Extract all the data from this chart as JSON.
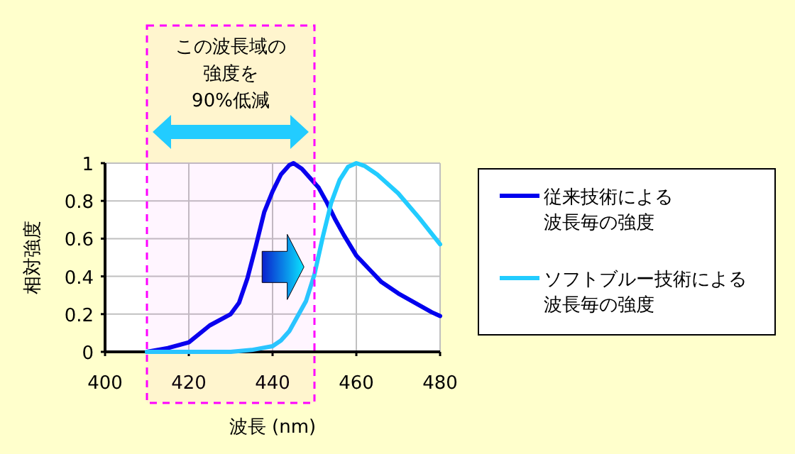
{
  "chart_data": {
    "type": "line",
    "xlabel": "波長 (nm)",
    "ylabel": "相対強度",
    "xlim": [
      400,
      480
    ],
    "xticks": [
      400,
      420,
      440,
      460,
      480
    ],
    "ylim": [
      0,
      1
    ],
    "yticks": [
      0,
      0.2,
      0.4,
      0.6,
      0.8,
      1
    ],
    "grid": true,
    "legend": "right",
    "line_style": "solid",
    "marker": "none",
    "bands": [
      {
        "axis": "x",
        "from": 410,
        "to": 450,
        "label": "この波長域の強度を90%低減",
        "color": "#ff00ff"
      }
    ],
    "series": [
      {
        "name": "従来技術による波長毎の強度",
        "color": "#0000ee",
        "x": [
          410,
          415,
          420,
          425,
          430,
          432,
          434,
          436,
          438,
          440,
          442,
          444,
          445,
          447,
          449,
          451,
          453,
          455,
          457,
          460,
          463,
          466,
          470,
          474,
          478,
          480
        ],
        "values": [
          0,
          0.02,
          0.05,
          0.14,
          0.2,
          0.26,
          0.39,
          0.56,
          0.74,
          0.85,
          0.94,
          0.99,
          1,
          0.97,
          0.92,
          0.87,
          0.79,
          0.7,
          0.62,
          0.51,
          0.44,
          0.37,
          0.31,
          0.26,
          0.21,
          0.19
        ]
      },
      {
        "name": "ソフトブルー技術による波長毎の強度",
        "color": "#22ccff",
        "x": [
          410,
          430,
          435,
          440,
          442,
          444,
          446,
          448,
          450,
          452,
          454,
          456,
          458,
          460,
          462,
          465,
          470,
          475,
          480
        ],
        "values": [
          0,
          0,
          0.01,
          0.03,
          0.06,
          0.11,
          0.19,
          0.27,
          0.41,
          0.61,
          0.79,
          0.91,
          0.98,
          1,
          0.985,
          0.94,
          0.84,
          0.71,
          0.57
        ]
      }
    ]
  }
}
